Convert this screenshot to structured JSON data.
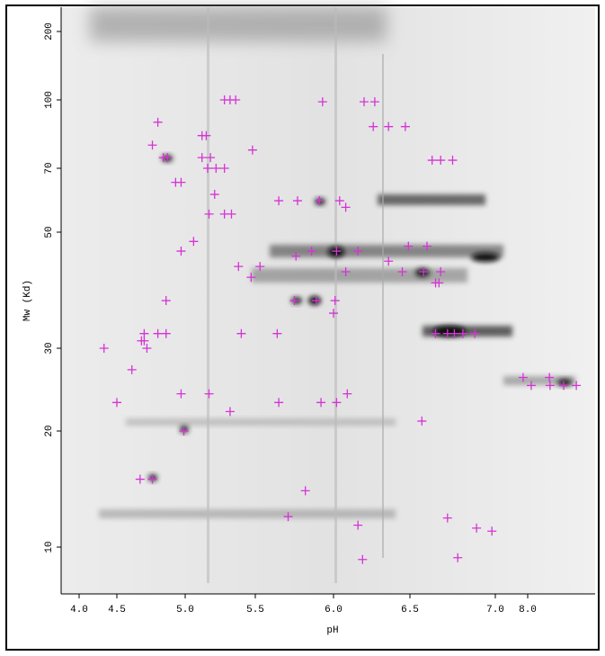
{
  "chart_data": {
    "type": "scatter",
    "x_label": "pH",
    "y_label": "Mw (Kd)",
    "color": "#d633d6",
    "log_y": true,
    "xlim": [
      3.76,
      10.08
    ],
    "ylim": [
      7.6,
      256
    ],
    "xticks": [
      {
        "value": 4,
        "label": "4.0"
      },
      4.5,
      {
        "value": 5,
        "label": "5.0"
      },
      5.5,
      {
        "value": 6,
        "label": "6.0"
      },
      6.5,
      {
        "value": 7,
        "label": "7.0"
      },
      {
        "value": 8,
        "label": "8.0"
      }
    ],
    "yticks": [
      10,
      20,
      30,
      50,
      70,
      100,
      200
    ],
    "x": [
      5.28,
      5.32,
      5.36,
      5.93,
      6.2,
      6.27,
      4.8,
      6.26,
      6.36,
      6.47,
      5.12,
      5.15,
      4.76,
      5.48,
      4.84,
      4.87,
      5.12,
      5.18,
      5.16,
      5.22,
      5.28,
      6.63,
      6.68,
      6.75,
      4.93,
      4.97,
      5.21,
      5.65,
      5.77,
      5.91,
      6.04,
      6.08,
      5.17,
      5.28,
      5.33,
      5.06,
      4.97,
      6.49,
      6.6,
      5.86,
      6.02,
      6.16,
      5.38,
      5.53,
      5.76,
      6.08,
      6.36,
      5.47,
      6.45,
      6.58,
      6.68,
      6.65,
      6.67,
      4.86,
      5.75,
      5.89,
      6.01,
      6.0,
      4.7,
      4.8,
      4.86,
      5.4,
      5.64,
      4.68,
      4.7,
      4.72,
      6.65,
      6.72,
      6.76,
      6.81,
      6.88,
      4.33,
      4.61,
      4.97,
      5.17,
      6.09,
      5.92,
      6.02,
      5.65,
      4.5,
      5.32,
      4.99,
      6.57,
      7.86,
      8.11,
      8.67,
      8.69,
      9.11,
      9.5,
      4.67,
      4.76,
      5.82,
      5.71,
      6.16,
      6.72,
      6.89,
      6.98,
      6.19,
      6.78
    ],
    "values": [
      100,
      100,
      100,
      99,
      99,
      99,
      89,
      87,
      87,
      87,
      83,
      83,
      79,
      77,
      74,
      74,
      74,
      74,
      70,
      70,
      70,
      73,
      73,
      73,
      65,
      65,
      61,
      59,
      59,
      59,
      59,
      57,
      55,
      55,
      55,
      48,
      46,
      47,
      47,
      46,
      46,
      46,
      43,
      43,
      45,
      42,
      44,
      41,
      42,
      42,
      42,
      40,
      40,
      37,
      37,
      37,
      37,
      35,
      32,
      32,
      32,
      32,
      32,
      31,
      31,
      30,
      32,
      32,
      32,
      32,
      32,
      30,
      27,
      24,
      24,
      24,
      23,
      23,
      23,
      23,
      22,
      20,
      21,
      26,
      25,
      26,
      25,
      25,
      25,
      15,
      15,
      14,
      12,
      11.4,
      11.9,
      11.2,
      11.0,
      9.3,
      9.4
    ]
  }
}
